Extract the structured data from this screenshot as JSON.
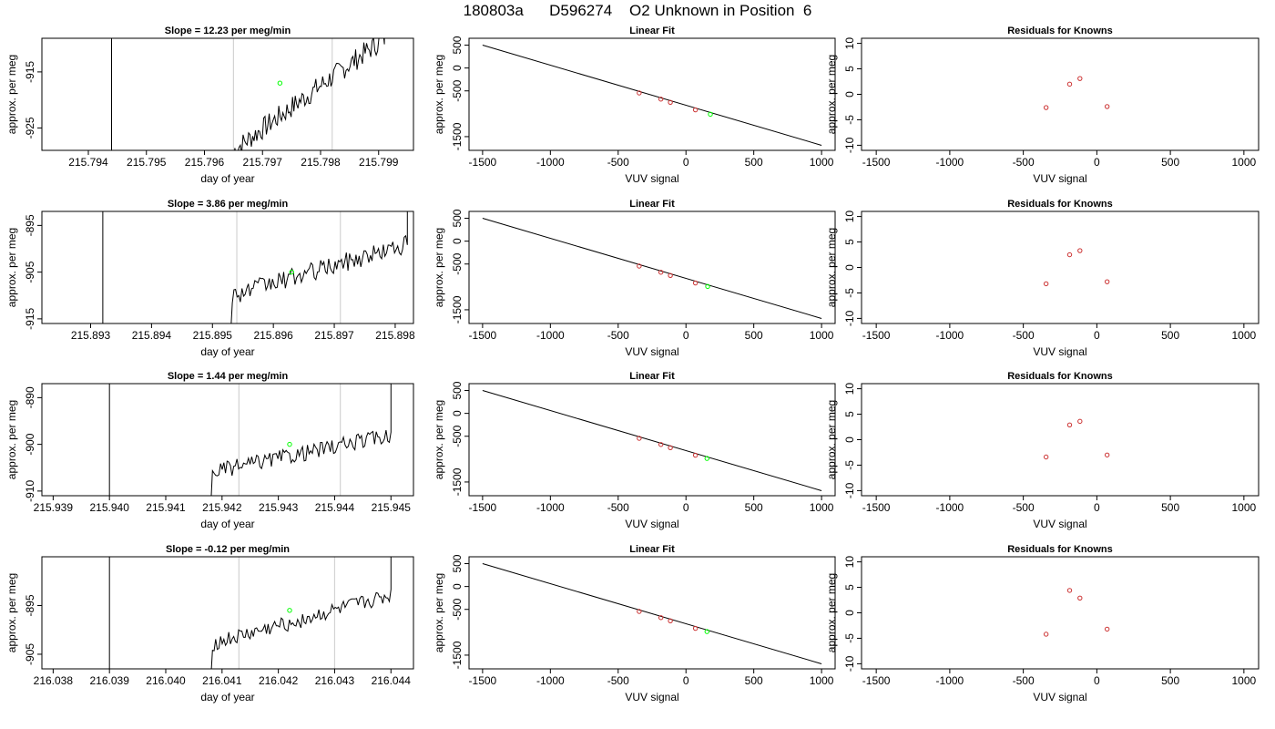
{
  "figure": {
    "title": "180803a      D596274    O2 Unknown in Position  6"
  },
  "colors": {
    "trace": "#000000",
    "marker_bars": "#d3d3d3",
    "unknown_point": "#00ff00",
    "known_point": "#cc3333"
  },
  "chart_data": [
    {
      "type": "line",
      "row": 0,
      "col": 0,
      "title": "Slope =  12.23  per meg/min",
      "xlabel": "day of year",
      "ylabel": "approx. per meg",
      "xlim": [
        215.7932,
        215.7996
      ],
      "ylim": [
        -929,
        -909
      ],
      "xticks": [
        215.794,
        215.795,
        215.796,
        215.797,
        215.798,
        215.799
      ],
      "xticklabels": [
        "215.794",
        "215.795",
        "215.796",
        "215.797",
        "215.798",
        "215.799"
      ],
      "yticks": [
        -915,
        -925
      ],
      "yticklabels": [
        "-915",
        "-925"
      ],
      "vline_black": 215.7944,
      "vlines_gray": [
        215.7965,
        215.7982
      ],
      "trace_start": 215.7965,
      "trace_end": 215.7991,
      "trace_start_y": -929,
      "trace_end_y": -909,
      "trace_jitter": 2.0,
      "unknown_point": {
        "x": 215.7973,
        "y": -917
      }
    },
    {
      "type": "scatter",
      "row": 0,
      "col": 1,
      "title": "Linear Fit",
      "xlabel": "VUV signal",
      "ylabel": "approx. per meg",
      "xlim": [
        -1600,
        1100
      ],
      "ylim": [
        -1800,
        650
      ],
      "xticks": [
        -1500,
        -1000,
        -500,
        0,
        500,
        1000
      ],
      "xticklabels": [
        "-1500",
        "-1000",
        "-500",
        "0",
        "500",
        "1000"
      ],
      "yticks": [
        500,
        0,
        -500,
        -1500
      ],
      "yticklabels": [
        "500",
        "0",
        "-500",
        "-1500"
      ],
      "fit_line": [
        [
          -1500,
          500
        ],
        [
          1000,
          -1690
        ]
      ],
      "known_points": [
        [
          -345,
          -545
        ],
        [
          -185,
          -680
        ],
        [
          -115,
          -750
        ],
        [
          70,
          -915
        ]
      ],
      "unknown_points": [
        [
          180,
          -1010
        ]
      ]
    },
    {
      "type": "scatter",
      "row": 0,
      "col": 2,
      "title": "Residuals for Knowns",
      "xlabel": "VUV signal",
      "ylabel": "approx. per meg",
      "xlim": [
        -1600,
        1100
      ],
      "ylim": [
        -11,
        11
      ],
      "xticks": [
        -1500,
        -1000,
        -500,
        0,
        500,
        1000
      ],
      "xticklabels": [
        "-1500",
        "-1000",
        "-500",
        "0",
        "500",
        "1000"
      ],
      "yticks": [
        10,
        5,
        0,
        -5,
        -10
      ],
      "yticklabels": [
        "10",
        "5",
        "0",
        "-5",
        "-10"
      ],
      "known_points": [
        [
          -345,
          -2.6
        ],
        [
          -185,
          2.0
        ],
        [
          -115,
          3.1
        ],
        [
          70,
          -2.4
        ]
      ]
    },
    {
      "type": "line",
      "row": 1,
      "col": 0,
      "title": "Slope =  3.86  per meg/min",
      "xlabel": "day of year",
      "ylabel": "approx. per meg",
      "xlim": [
        215.8922,
        215.8983
      ],
      "ylim": [
        -916,
        -892
      ],
      "xticks": [
        215.893,
        215.894,
        215.895,
        215.896,
        215.897,
        215.898
      ],
      "xticklabels": [
        "215.893",
        "215.894",
        "215.895",
        "215.896",
        "215.897",
        "215.898"
      ],
      "yticks": [
        -895,
        -905,
        -915
      ],
      "yticklabels": [
        "-895",
        "-905",
        "-915"
      ],
      "vline_black": 215.8932,
      "vlines_gray": [
        215.8954,
        215.8971
      ],
      "trace_start": 215.8953,
      "trace_end": 215.8982,
      "trace_start_y": -910,
      "trace_end_y": -899,
      "trace_jitter": 2.0,
      "unknown_point": {
        "x": 215.8963,
        "y": -905
      }
    },
    {
      "type": "scatter",
      "row": 1,
      "col": 1,
      "title": "Linear Fit",
      "xlabel": "VUV signal",
      "ylabel": "approx. per meg",
      "xlim": [
        -1600,
        1100
      ],
      "ylim": [
        -1800,
        650
      ],
      "xticks": [
        -1500,
        -1000,
        -500,
        0,
        500,
        1000
      ],
      "xticklabels": [
        "-1500",
        "-1000",
        "-500",
        "0",
        "500",
        "1000"
      ],
      "yticks": [
        500,
        0,
        -500,
        -1500
      ],
      "yticklabels": [
        "500",
        "0",
        "-500",
        "-1500"
      ],
      "fit_line": [
        [
          -1500,
          500
        ],
        [
          1000,
          -1690
        ]
      ],
      "known_points": [
        [
          -345,
          -545
        ],
        [
          -185,
          -680
        ],
        [
          -115,
          -750
        ],
        [
          70,
          -915
        ]
      ],
      "unknown_points": [
        [
          160,
          -990
        ]
      ]
    },
    {
      "type": "scatter",
      "row": 1,
      "col": 2,
      "title": "Residuals for Knowns",
      "xlabel": "VUV signal",
      "ylabel": "approx. per meg",
      "xlim": [
        -1600,
        1100
      ],
      "ylim": [
        -11,
        11
      ],
      "xticks": [
        -1500,
        -1000,
        -500,
        0,
        500,
        1000
      ],
      "xticklabels": [
        "-1500",
        "-1000",
        "-500",
        "0",
        "500",
        "1000"
      ],
      "yticks": [
        10,
        5,
        0,
        -5,
        -10
      ],
      "yticklabels": [
        "10",
        "5",
        "0",
        "-5",
        "-10"
      ],
      "known_points": [
        [
          -345,
          -3.2
        ],
        [
          -185,
          2.5
        ],
        [
          -115,
          3.3
        ],
        [
          70,
          -2.8
        ]
      ]
    },
    {
      "type": "line",
      "row": 2,
      "col": 0,
      "title": "Slope =  1.44  per meg/min",
      "xlabel": "day of year",
      "ylabel": "approx. per meg",
      "xlim": [
        215.9388,
        215.9454
      ],
      "ylim": [
        -911,
        -887
      ],
      "xticks": [
        215.939,
        215.94,
        215.941,
        215.942,
        215.943,
        215.944,
        215.945
      ],
      "xticklabels": [
        "215.939",
        "215.940",
        "215.941",
        "215.942",
        "215.943",
        "215.944",
        "215.945"
      ],
      "yticks": [
        -890,
        -900,
        -910
      ],
      "yticklabels": [
        "-890",
        "-900",
        "-910"
      ],
      "vline_black": 215.94,
      "vlines_gray": [
        215.9423,
        215.9441
      ],
      "trace_start": 215.9418,
      "trace_end": 215.945,
      "trace_start_y": -906,
      "trace_end_y": -898,
      "trace_jitter": 1.7,
      "unknown_point": {
        "x": 215.9432,
        "y": -900
      }
    },
    {
      "type": "scatter",
      "row": 2,
      "col": 1,
      "title": "Linear Fit",
      "xlabel": "VUV signal",
      "ylabel": "approx. per meg",
      "xlim": [
        -1600,
        1100
      ],
      "ylim": [
        -1800,
        650
      ],
      "xticks": [
        -1500,
        -1000,
        -500,
        0,
        500,
        1000
      ],
      "xticklabels": [
        "-1500",
        "-1000",
        "-500",
        "0",
        "500",
        "1000"
      ],
      "yticks": [
        500,
        0,
        -500,
        -1500
      ],
      "yticklabels": [
        "500",
        "0",
        "-500",
        "-1500"
      ],
      "fit_line": [
        [
          -1500,
          500
        ],
        [
          1000,
          -1690
        ]
      ],
      "known_points": [
        [
          -345,
          -545
        ],
        [
          -185,
          -680
        ],
        [
          -115,
          -750
        ],
        [
          70,
          -915
        ]
      ],
      "unknown_points": [
        [
          155,
          -985
        ]
      ]
    },
    {
      "type": "scatter",
      "row": 2,
      "col": 2,
      "title": "Residuals for Knowns",
      "xlabel": "VUV signal",
      "ylabel": "approx. per meg",
      "xlim": [
        -1600,
        1100
      ],
      "ylim": [
        -11,
        11
      ],
      "xticks": [
        -1500,
        -1000,
        -500,
        0,
        500,
        1000
      ],
      "xticklabels": [
        "-1500",
        "-1000",
        "-500",
        "0",
        "500",
        "1000"
      ],
      "yticks": [
        10,
        5,
        0,
        -5,
        -10
      ],
      "yticklabels": [
        "10",
        "5",
        "0",
        "-5",
        "-10"
      ],
      "known_points": [
        [
          -345,
          -3.4
        ],
        [
          -185,
          2.9
        ],
        [
          -115,
          3.6
        ],
        [
          70,
          -3.0
        ]
      ]
    },
    {
      "type": "line",
      "row": 3,
      "col": 0,
      "title": "Slope =  -0.12  per meg/min",
      "xlabel": "day of year",
      "ylabel": "approx. per meg",
      "xlim": [
        216.0378,
        216.0444
      ],
      "ylim": [
        -908,
        -885
      ],
      "xticks": [
        216.038,
        216.039,
        216.04,
        216.041,
        216.042,
        216.043,
        216.044
      ],
      "xticklabels": [
        "216.038",
        "216.039",
        "216.040",
        "216.041",
        "216.042",
        "216.043",
        "216.044"
      ],
      "yticks": [
        -895,
        -905
      ],
      "yticklabels": [
        "-895",
        "-905"
      ],
      "vline_black": 216.039,
      "vlines_gray": [
        216.0413,
        216.043
      ],
      "trace_start": 216.0408,
      "trace_end": 216.044,
      "trace_start_y": -903,
      "trace_end_y": -893,
      "trace_jitter": 1.6,
      "unknown_point": {
        "x": 216.0422,
        "y": -896
      }
    },
    {
      "type": "scatter",
      "row": 3,
      "col": 1,
      "title": "Linear Fit",
      "xlabel": "VUV signal",
      "ylabel": "approx. per meg",
      "xlim": [
        -1600,
        1100
      ],
      "ylim": [
        -1800,
        650
      ],
      "xticks": [
        -1500,
        -1000,
        -500,
        0,
        500,
        1000
      ],
      "xticklabels": [
        "-1500",
        "-1000",
        "-500",
        "0",
        "500",
        "1000"
      ],
      "yticks": [
        500,
        0,
        -500,
        -1500
      ],
      "yticklabels": [
        "500",
        "0",
        "-500",
        "-1500"
      ],
      "fit_line": [
        [
          -1500,
          500
        ],
        [
          1000,
          -1690
        ]
      ],
      "known_points": [
        [
          -345,
          -545
        ],
        [
          -185,
          -680
        ],
        [
          -115,
          -750
        ],
        [
          70,
          -915
        ]
      ],
      "unknown_points": [
        [
          155,
          -985
        ]
      ]
    },
    {
      "type": "scatter",
      "row": 3,
      "col": 2,
      "title": "Residuals for Knowns",
      "xlabel": "VUV signal",
      "ylabel": "approx. per meg",
      "xlim": [
        -1600,
        1100
      ],
      "ylim": [
        -11,
        11
      ],
      "xticks": [
        -1500,
        -1000,
        -500,
        0,
        500,
        1000
      ],
      "xticklabels": [
        "-1500",
        "-1000",
        "-500",
        "0",
        "500",
        "1000"
      ],
      "yticks": [
        10,
        5,
        0,
        -5,
        -10
      ],
      "yticklabels": [
        "10",
        "5",
        "0",
        "-5",
        "-10"
      ],
      "known_points": [
        [
          -345,
          -4.2
        ],
        [
          -185,
          4.4
        ],
        [
          -115,
          2.9
        ],
        [
          70,
          -3.2
        ]
      ]
    }
  ]
}
